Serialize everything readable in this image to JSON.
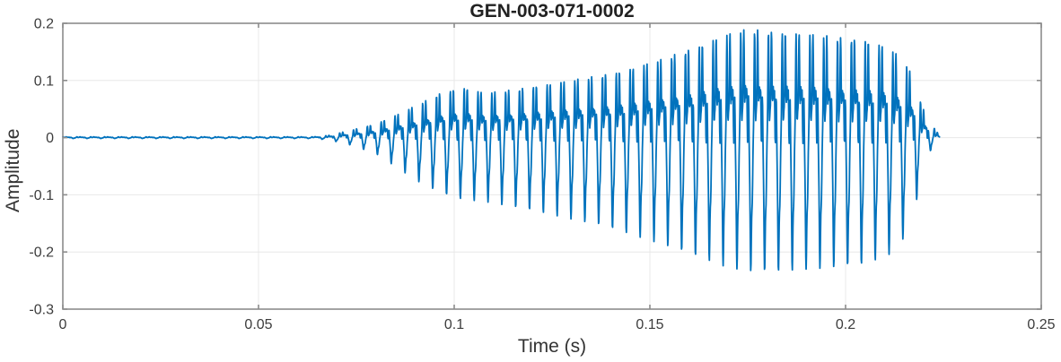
{
  "chart_data": {
    "type": "line",
    "title": "GEN-003-071-0002",
    "xlabel": "Time (s)",
    "ylabel": "Amplitude",
    "xlim": [
      0,
      0.25
    ],
    "ylim": [
      -0.3,
      0.2
    ],
    "xticks": [
      0,
      0.05,
      0.1,
      0.15,
      0.2,
      0.25
    ],
    "xtick_labels": [
      "0",
      "0.05",
      "0.1",
      "0.15",
      "0.2",
      "0.25"
    ],
    "yticks": [
      -0.3,
      -0.2,
      -0.1,
      0,
      0.1,
      0.2
    ],
    "ytick_labels": [
      "-0.3",
      "-0.2",
      "-0.1",
      "0",
      "0.1",
      "0.2"
    ],
    "grid": true,
    "legend": "none",
    "colors": {
      "line": "#0072BD",
      "grid": "#e8e8e8",
      "axis": "#8c8c8c",
      "tick_text": "#3c3c3c"
    },
    "signal": {
      "description": "Speech-like acoustic burst: flat near zero until ~0.066 s, oscillation at ~283 Hz fundamental with rich harmonics growing to a maximum near t = 0.175 s (peak ~ +0.19, trough ~ -0.236), then decaying rapidly and ending at ~0.224 s",
      "fundamental_hz": 283,
      "silence_until_s": 0.064,
      "end_s": 0.224,
      "peak_amplitude": 0.19,
      "min_amplitude": -0.236,
      "harmonics": [
        {
          "multiple": 1,
          "amplitude": 1.0,
          "phase": 0.0
        },
        {
          "multiple": 2,
          "amplitude": 0.55,
          "phase": 1.35
        },
        {
          "multiple": 3,
          "amplitude": 0.42,
          "phase": 2.6
        },
        {
          "multiple": 5,
          "amplitude": 0.3,
          "phase": 0.8
        },
        {
          "multiple": 9,
          "amplitude": 0.16,
          "phase": 0.3
        }
      ],
      "envelope": {
        "t": [
          0.0,
          0.064,
          0.068,
          0.073,
          0.08,
          0.086,
          0.092,
          0.097,
          0.102,
          0.108,
          0.114,
          0.121,
          0.129,
          0.137,
          0.145,
          0.153,
          0.161,
          0.169,
          0.175,
          0.182,
          0.19,
          0.198,
          0.205,
          0.211,
          0.215,
          0.218,
          0.2195,
          0.2215,
          0.2232,
          0.224
        ],
        "pos": [
          0.0015,
          0.0015,
          0.004,
          0.012,
          0.024,
          0.042,
          0.062,
          0.08,
          0.088,
          0.078,
          0.083,
          0.091,
          0.099,
          0.109,
          0.121,
          0.137,
          0.158,
          0.18,
          0.19,
          0.187,
          0.182,
          0.176,
          0.172,
          0.158,
          0.135,
          0.095,
          0.055,
          0.028,
          0.012,
          0.003
        ],
        "neg": [
          0.0015,
          0.0015,
          0.004,
          0.012,
          0.028,
          0.055,
          0.082,
          0.098,
          0.108,
          0.112,
          0.12,
          0.129,
          0.141,
          0.153,
          0.169,
          0.186,
          0.206,
          0.225,
          0.234,
          0.236,
          0.23,
          0.227,
          0.222,
          0.205,
          0.175,
          0.115,
          0.06,
          0.025,
          0.008,
          0.002
        ]
      }
    }
  }
}
